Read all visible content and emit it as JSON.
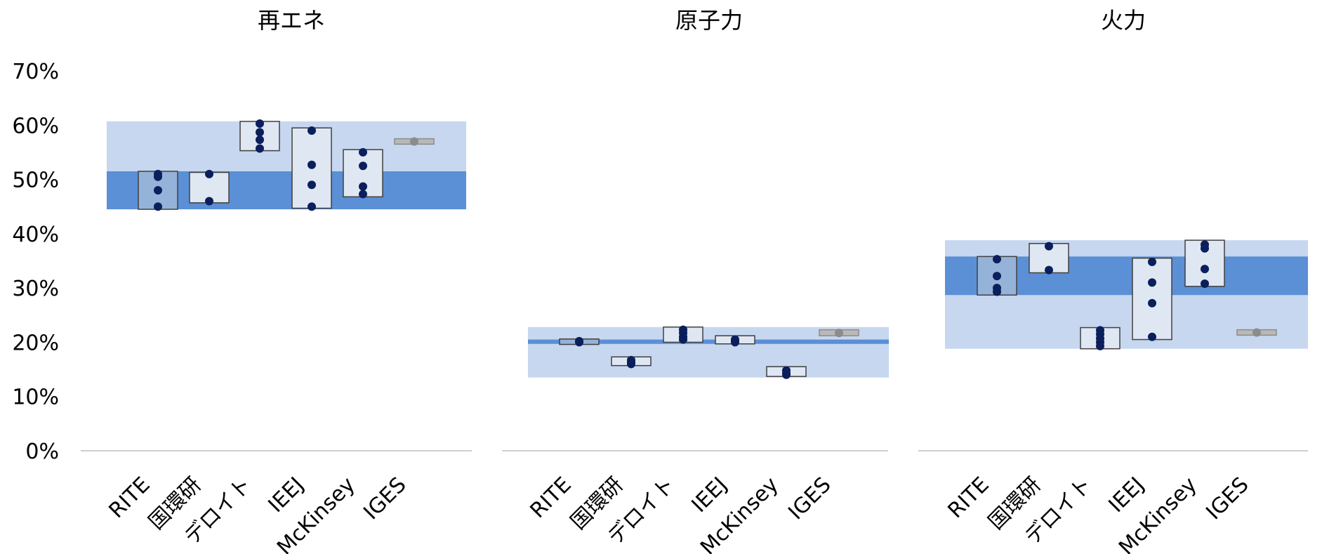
{
  "chart_data": [
    {
      "type": "box",
      "title": "再エネ",
      "categories": [
        "RITE",
        "国環研",
        "デロイト",
        "IEEJ",
        "McKinsey",
        "IGES"
      ],
      "outer_range": [
        0.445,
        0.607
      ],
      "inner_range": [
        0.445,
        0.515
      ],
      "boxes": [
        {
          "category": "RITE",
          "low": 0.445,
          "high": 0.515,
          "style": "dark",
          "points": [
            0.45,
            0.48,
            0.505,
            0.51
          ]
        },
        {
          "category": "国環研",
          "low": 0.457,
          "high": 0.513,
          "style": "light",
          "points": [
            0.46,
            0.51
          ]
        },
        {
          "category": "デロイト",
          "low": 0.553,
          "high": 0.607,
          "style": "light",
          "points": [
            0.557,
            0.573,
            0.587,
            0.603
          ]
        },
        {
          "category": "IEEJ",
          "low": 0.447,
          "high": 0.595,
          "style": "light",
          "points": [
            0.45,
            0.49,
            0.527,
            0.59
          ]
        },
        {
          "category": "McKinsey",
          "low": 0.468,
          "high": 0.555,
          "style": "light",
          "points": [
            0.473,
            0.487,
            0.525,
            0.55
          ]
        },
        {
          "category": "IGES",
          "low": 0.565,
          "high": 0.575,
          "style": "grey",
          "points": [
            0.57
          ]
        }
      ]
    },
    {
      "type": "box",
      "title": "原子力",
      "categories": [
        "RITE",
        "国環研",
        "デロイト",
        "IEEJ",
        "McKinsey",
        "IGES"
      ],
      "outer_range": [
        0.135,
        0.228
      ],
      "inner_range": [
        0.197,
        0.205
      ],
      "boxes": [
        {
          "category": "RITE",
          "low": 0.196,
          "high": 0.206,
          "style": "dark",
          "points": [
            0.2,
            0.202
          ]
        },
        {
          "category": "国環研",
          "low": 0.157,
          "high": 0.173,
          "style": "light",
          "points": [
            0.16,
            0.163,
            0.167
          ]
        },
        {
          "category": "デロイト",
          "low": 0.2,
          "high": 0.228,
          "style": "light",
          "points": [
            0.205,
            0.21,
            0.217,
            0.223
          ]
        },
        {
          "category": "IEEJ",
          "low": 0.197,
          "high": 0.212,
          "style": "light",
          "points": [
            0.2,
            0.203,
            0.205
          ]
        },
        {
          "category": "McKinsey",
          "low": 0.137,
          "high": 0.155,
          "style": "light",
          "points": [
            0.14,
            0.143,
            0.148
          ]
        },
        {
          "category": "IGES",
          "low": 0.212,
          "high": 0.223,
          "style": "grey",
          "points": [
            0.217
          ]
        }
      ]
    },
    {
      "type": "box",
      "title": "火力",
      "categories": [
        "RITE",
        "国環研",
        "デロイト",
        "IEEJ",
        "McKinsey",
        "IGES"
      ],
      "outer_range": [
        0.188,
        0.388
      ],
      "inner_range": [
        0.287,
        0.358
      ],
      "boxes": [
        {
          "category": "RITE",
          "low": 0.287,
          "high": 0.358,
          "style": "dark",
          "points": [
            0.293,
            0.3,
            0.322,
            0.353
          ]
        },
        {
          "category": "国環研",
          "low": 0.328,
          "high": 0.382,
          "style": "light",
          "points": [
            0.333,
            0.377
          ]
        },
        {
          "category": "デロイト",
          "low": 0.188,
          "high": 0.227,
          "style": "light",
          "points": [
            0.193,
            0.2,
            0.207,
            0.215,
            0.222
          ]
        },
        {
          "category": "IEEJ",
          "low": 0.205,
          "high": 0.355,
          "style": "light",
          "points": [
            0.21,
            0.272,
            0.31,
            0.348
          ]
        },
        {
          "category": "McKinsey",
          "low": 0.303,
          "high": 0.388,
          "style": "light",
          "points": [
            0.308,
            0.335,
            0.373,
            0.38
          ]
        },
        {
          "category": "IGES",
          "low": 0.213,
          "high": 0.223,
          "style": "grey",
          "points": [
            0.218
          ]
        }
      ]
    }
  ],
  "y_axis": {
    "ylim": [
      0,
      0.7
    ],
    "ticks": [
      0,
      0.1,
      0.2,
      0.3,
      0.4,
      0.5,
      0.6,
      0.7
    ],
    "tick_labels": [
      "0%",
      "10%",
      "20%",
      "30%",
      "40%",
      "50%",
      "60%",
      "70%"
    ]
  },
  "colors": {
    "outer_band": "#c6d7ef",
    "inner_band": "#5b8fd6",
    "box_dark": "#95b3d9",
    "box_light": "#dfe7f3",
    "box_grey": "#b9b9b9",
    "box_border_dark": "#404040",
    "box_border_grey": "#8c8c8c",
    "dot": "#0a1f5c",
    "dot_grey": "#8c8c8c",
    "baseline": "#bfbfbf"
  }
}
